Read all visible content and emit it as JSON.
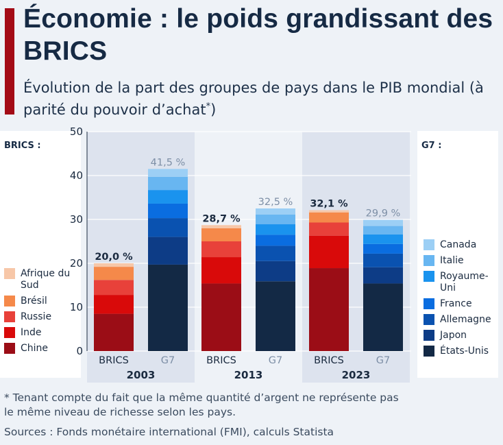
{
  "title": "Économie : le poids grandissant des BRICS",
  "subtitle": "Évolution de la part des groupes de pays dans le PIB mondial (à parité du pouvoir d’achat",
  "subtitle_mark": "*",
  "subtitle_end": ")",
  "legend_brics": {
    "title": "BRICS :",
    "items": [
      {
        "label": "Afrique du Sud",
        "color": "#f7c7a8"
      },
      {
        "label": "Brésil",
        "color": "#f5894a"
      },
      {
        "label": "Russie",
        "color": "#e8413a"
      },
      {
        "label": "Inde",
        "color": "#d90a0a"
      },
      {
        "label": "Chine",
        "color": "#9b0d16"
      }
    ]
  },
  "legend_g7": {
    "title": "G7 :",
    "items": [
      {
        "label": "Canada",
        "color": "#9ccff5"
      },
      {
        "label": "Italie",
        "color": "#68b6f1"
      },
      {
        "label": "Royaume-Uni",
        "color": "#1a93ee"
      },
      {
        "label": "France",
        "color": "#0a6de0"
      },
      {
        "label": "Allemagne",
        "color": "#0a52b0"
      },
      {
        "label": "Japon",
        "color": "#0d3c86"
      },
      {
        "label": "États-Unis",
        "color": "#132945"
      }
    ]
  },
  "chart_data": {
    "type": "bar",
    "stacked": true,
    "ylim": [
      0,
      50
    ],
    "yticks": [
      0,
      10,
      20,
      30,
      40,
      50
    ],
    "grid": true,
    "groups": [
      {
        "year": "2003",
        "bars": [
          {
            "name": "BRICS",
            "total_label": "20,0 %",
            "segments": [
              {
                "series": "Chine",
                "value": 8.5,
                "color": "#9b0d16"
              },
              {
                "series": "Inde",
                "value": 4.3,
                "color": "#d90a0a"
              },
              {
                "series": "Russie",
                "value": 3.4,
                "color": "#e8413a"
              },
              {
                "series": "Brésil",
                "value": 3.0,
                "color": "#f5894a"
              },
              {
                "series": "Afrique du Sud",
                "value": 0.8,
                "color": "#f7c7a8"
              }
            ]
          },
          {
            "name": "G7",
            "total_label": "41,5 %",
            "segments": [
              {
                "series": "États-Unis",
                "value": 19.7,
                "color": "#132945"
              },
              {
                "series": "Japon",
                "value": 6.3,
                "color": "#0d3c86"
              },
              {
                "series": "Allemagne",
                "value": 4.3,
                "color": "#0a52b0"
              },
              {
                "series": "France",
                "value": 3.3,
                "color": "#0a6de0"
              },
              {
                "series": "Royaume-Uni",
                "value": 3.1,
                "color": "#1a93ee"
              },
              {
                "series": "Italie",
                "value": 3.0,
                "color": "#68b6f1"
              },
              {
                "series": "Canada",
                "value": 1.8,
                "color": "#9ccff5"
              }
            ]
          }
        ]
      },
      {
        "year": "2013",
        "bars": [
          {
            "name": "BRICS",
            "total_label": "28,7 %",
            "segments": [
              {
                "series": "Chine",
                "value": 15.4,
                "color": "#9b0d16"
              },
              {
                "series": "Inde",
                "value": 6.0,
                "color": "#d90a0a"
              },
              {
                "series": "Russie",
                "value": 3.6,
                "color": "#e8413a"
              },
              {
                "series": "Brésil",
                "value": 3.0,
                "color": "#f5894a"
              },
              {
                "series": "Afrique du Sud",
                "value": 0.7,
                "color": "#f7c7a8"
              }
            ]
          },
          {
            "name": "G7",
            "total_label": "32,5 %",
            "segments": [
              {
                "series": "États-Unis",
                "value": 15.9,
                "color": "#132945"
              },
              {
                "series": "Japon",
                "value": 4.6,
                "color": "#0d3c86"
              },
              {
                "series": "Allemagne",
                "value": 3.5,
                "color": "#0a52b0"
              },
              {
                "series": "France",
                "value": 2.5,
                "color": "#0a6de0"
              },
              {
                "series": "Royaume-Uni",
                "value": 2.4,
                "color": "#1a93ee"
              },
              {
                "series": "Italie",
                "value": 2.2,
                "color": "#68b6f1"
              },
              {
                "series": "Canada",
                "value": 1.4,
                "color": "#9ccff5"
              }
            ]
          }
        ]
      },
      {
        "year": "2023",
        "bars": [
          {
            "name": "BRICS",
            "total_label": "32,1 %",
            "segments": [
              {
                "series": "Chine",
                "value": 18.9,
                "color": "#9b0d16"
              },
              {
                "series": "Inde",
                "value": 7.4,
                "color": "#d90a0a"
              },
              {
                "series": "Russie",
                "value": 3.0,
                "color": "#e8413a"
              },
              {
                "series": "Brésil",
                "value": 2.3,
                "color": "#f5894a"
              },
              {
                "series": "Afrique du Sud",
                "value": 0.5,
                "color": "#f7c7a8"
              }
            ]
          },
          {
            "name": "G7",
            "total_label": "29,9 %",
            "segments": [
              {
                "series": "États-Unis",
                "value": 15.4,
                "color": "#132945"
              },
              {
                "series": "Japon",
                "value": 3.7,
                "color": "#0d3c86"
              },
              {
                "series": "Allemagne",
                "value": 3.1,
                "color": "#0a52b0"
              },
              {
                "series": "France",
                "value": 2.2,
                "color": "#0a6de0"
              },
              {
                "series": "Royaume-Uni",
                "value": 2.2,
                "color": "#1a93ee"
              },
              {
                "series": "Italie",
                "value": 1.9,
                "color": "#68b6f1"
              },
              {
                "series": "Canada",
                "value": 1.4,
                "color": "#9ccff5"
              }
            ]
          }
        ]
      }
    ]
  },
  "footnote": "* Tenant compte du fait que la même quantité d’argent ne représente pas\n    le même niveau de richesse selon les pays.",
  "sources": "Sources : Fonds monétaire international (FMI), calculs Statista"
}
